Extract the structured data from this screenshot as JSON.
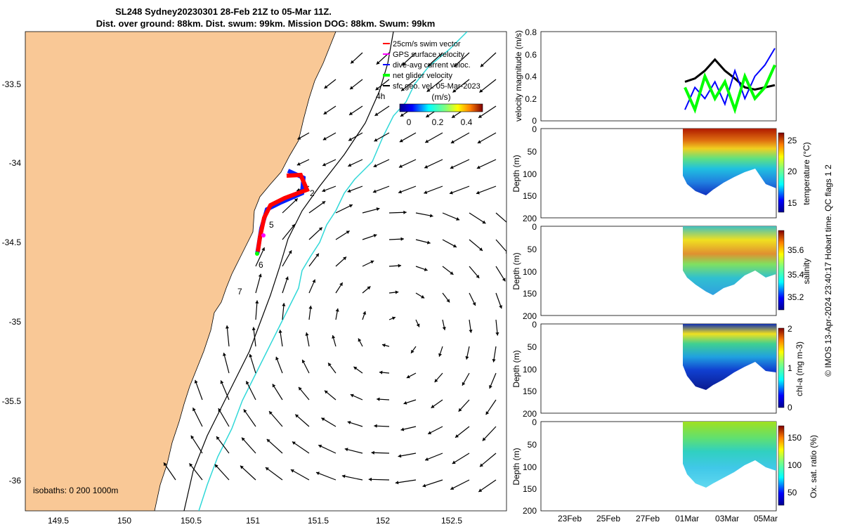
{
  "header": {
    "title_line1": "SL248 Sydney20230301 28-Feb 21Z to 05-Mar 11Z.",
    "title_line2": "Dist. over ground: 88km. Dist. swum: 99km. Mission DOG: 88km. Swum: 99km"
  },
  "map": {
    "legend": [
      {
        "label": "25cm/s swim vector",
        "color": "#ff0000"
      },
      {
        "label": "GPS surface velocity",
        "color": "#ff00ff"
      },
      {
        "label": "dive-avg current veloc.",
        "color": "#0000ff"
      },
      {
        "label": "net glider velocity",
        "color": "#00ff00"
      },
      {
        "label": "sfc geo. vel. 05-Mar-2023",
        "color": "#000000"
      }
    ],
    "colorbar_unit": "(m/s)",
    "colorbar_ticks": [
      "0",
      "0.2",
      "0.4"
    ],
    "x_ticks": [
      "149.5",
      "150",
      "150.5",
      "151",
      "151.5",
      "152",
      "152.5"
    ],
    "y_ticks": [
      "-33.5",
      "-34",
      "-34.5",
      "-35",
      "-35.5",
      "-36"
    ],
    "isobath_label": "isobaths: 0   200  1000m",
    "day_markers": [
      "2",
      "5",
      "6",
      "7"
    ],
    "hour_marker": "4h",
    "land_color": "#f9c896"
  },
  "panels": {
    "velocity": {
      "ylabel": "velocity magnitude (m/s)",
      "yticks": [
        "0.8",
        "0.6",
        "0.4",
        "0.2",
        "0"
      ]
    },
    "temperature": {
      "ylabel": "Depth (m)",
      "cbar_label": "temperature (°C)",
      "cbar_ticks": [
        "25",
        "20",
        "15"
      ]
    },
    "salinity": {
      "ylabel": "Depth (m)",
      "cbar_label": "salinity",
      "cbar_ticks": [
        "35.6",
        "35.4",
        "35.2"
      ]
    },
    "chla": {
      "ylabel": "Depth (m)",
      "cbar_label": "chl-a (mg m-3)",
      "cbar_ticks": [
        "2",
        "1",
        "0"
      ]
    },
    "oxygen": {
      "ylabel": "Depth (m)",
      "cbar_label": "Ox. sat. ratio (%)",
      "cbar_ticks": [
        "150",
        "100",
        "50"
      ]
    },
    "depth_ticks": [
      "0",
      "50",
      "100",
      "150",
      "200"
    ],
    "x_ticks": [
      "23Feb",
      "25Feb",
      "27Feb",
      "01Mar",
      "03Mar",
      "05Mar"
    ]
  },
  "footer": {
    "credit": "© IMOS 13-Apr-2024 23:40:17 Hobart time. QC flags 1  2"
  },
  "chart_data": [
    {
      "type": "scatter",
      "title": "SL248 Sydney20230301 28-Feb 21Z to 05-Mar 11Z.",
      "xlim": [
        149.25,
        152.9
      ],
      "ylim": [
        -36.2,
        -33.2
      ],
      "series": [
        {
          "name": "glider track",
          "x": [
            151.35,
            151.4,
            151.3,
            151.2,
            151.1,
            151.05,
            151.02
          ],
          "y": [
            -34.09,
            -34.2,
            -34.25,
            -34.28,
            -34.33,
            -34.45,
            -34.55
          ]
        }
      ]
    },
    {
      "type": "line",
      "ylabel": "velocity magnitude (m/s)",
      "ylim": [
        0,
        0.8
      ],
      "series": [
        {
          "name": "sfc geo. vel. 05-Mar-2023",
          "values": [
            0.35,
            0.38,
            0.45,
            0.55,
            0.45,
            0.38,
            0.3,
            0.28,
            0.3,
            0.32
          ]
        },
        {
          "name": "dive-avg current veloc.",
          "values": [
            0.1,
            0.3,
            0.2,
            0.35,
            0.15,
            0.45,
            0.2,
            0.4,
            0.5,
            0.65
          ]
        },
        {
          "name": "net glider velocity",
          "values": [
            0.3,
            0.1,
            0.4,
            0.2,
            0.35,
            0.1,
            0.4,
            0.2,
            0.3,
            0.5
          ]
        }
      ]
    }
  ]
}
